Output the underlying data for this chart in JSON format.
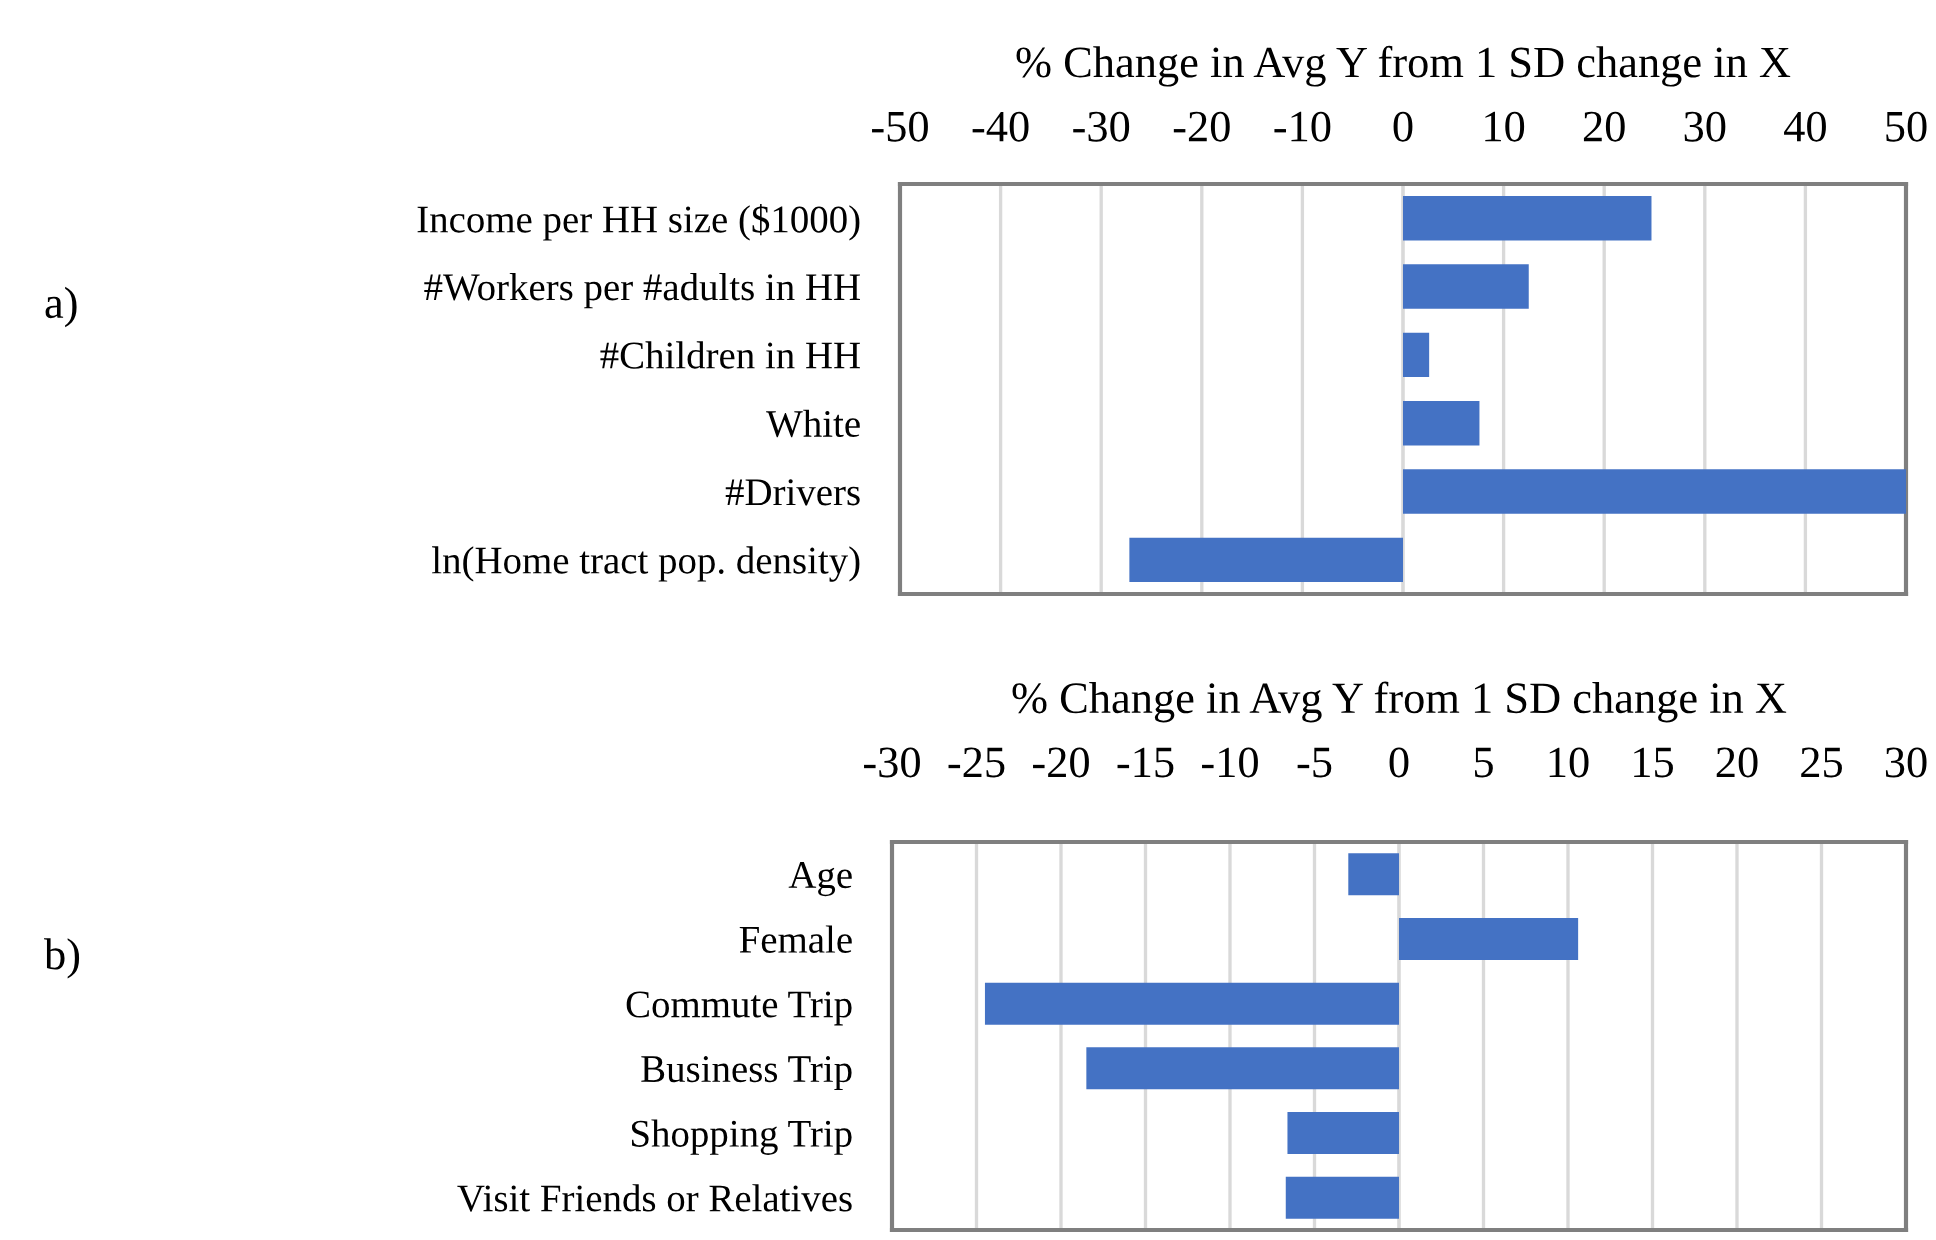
{
  "chart_data": [
    {
      "type": "bar",
      "orientation": "horizontal",
      "xlabel": "% Change in Avg Y from 1 SD change in X",
      "annotations": [
        "a)"
      ],
      "categories": [
        "Income per HH size ($1000)",
        "#Workers per #adults in HH",
        "#Children in HH",
        "White",
        "#Drivers",
        "ln(Home tract pop. density)"
      ],
      "values": [
        24.7,
        12.5,
        2.6,
        7.6,
        50,
        -27.2
      ],
      "color": "#4472c4",
      "xlim": [
        -50,
        50
      ],
      "xticks": [
        -50,
        -40,
        -30,
        -20,
        -10,
        0,
        10,
        20,
        30,
        40,
        50
      ],
      "grid": "x"
    },
    {
      "type": "bar",
      "orientation": "horizontal",
      "xlabel": "% Change in Avg Y from 1 SD change in X",
      "annotations": [
        "b)"
      ],
      "categories": [
        "Age",
        "Female",
        "Commute Trip",
        "Business Trip",
        "Shopping Trip",
        "Visit Friends or Relatives"
      ],
      "values": [
        -3.0,
        10.6,
        -24.5,
        -18.5,
        -6.6,
        -6.7
      ],
      "color": "#4472c4",
      "xlim": [
        -30,
        30
      ],
      "xticks": [
        -30,
        -25,
        -20,
        -15,
        -10,
        -5,
        0,
        5,
        10,
        15,
        20,
        25,
        30
      ],
      "grid": "x"
    }
  ]
}
